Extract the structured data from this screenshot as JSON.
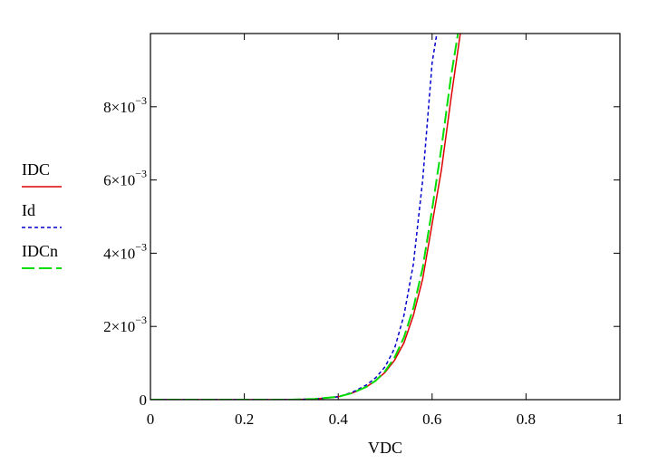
{
  "chart_data": {
    "type": "line",
    "xlabel": "VDC",
    "ylabel": "",
    "xlim": [
      0,
      1
    ],
    "ylim": [
      0,
      0.01
    ],
    "grid": false,
    "legend_position": "left",
    "x_ticks": [
      {
        "value": 0,
        "label": "0"
      },
      {
        "value": 0.2,
        "label": "0.2"
      },
      {
        "value": 0.4,
        "label": "0.4"
      },
      {
        "value": 0.6,
        "label": "0.6"
      },
      {
        "value": 0.8,
        "label": "0.8"
      },
      {
        "value": 1,
        "label": "1"
      }
    ],
    "y_ticks": [
      {
        "value": 0,
        "mantissa": "0",
        "exponent": ""
      },
      {
        "value": 0.002,
        "mantissa": "2×10",
        "exponent": "−3"
      },
      {
        "value": 0.004,
        "mantissa": "4×10",
        "exponent": "−3"
      },
      {
        "value": 0.006,
        "mantissa": "6×10",
        "exponent": "−3"
      },
      {
        "value": 0.008,
        "mantissa": "8×10",
        "exponent": "−3"
      }
    ],
    "series": [
      {
        "name": "IDC",
        "color": "#dd0000",
        "dash": "solid",
        "x": [
          0,
          0.1,
          0.2,
          0.3,
          0.35,
          0.4,
          0.43,
          0.46,
          0.48,
          0.5,
          0.52,
          0.54,
          0.56,
          0.58,
          0.6,
          0.62,
          0.64,
          0.66
        ],
        "y": [
          0,
          0,
          0,
          0,
          2e-05,
          8e-05,
          0.00018,
          0.00035,
          0.00052,
          0.00075,
          0.00108,
          0.00155,
          0.0023,
          0.0033,
          0.0048,
          0.0063,
          0.0082,
          0.01
        ]
      },
      {
        "name": "Id",
        "color": "#0000cc",
        "dash": "short-dash",
        "x": [
          0,
          0.1,
          0.2,
          0.3,
          0.35,
          0.4,
          0.43,
          0.46,
          0.48,
          0.5,
          0.52,
          0.54,
          0.56,
          0.58,
          0.6,
          0.61
        ],
        "y": [
          0,
          0,
          0,
          0,
          2e-05,
          8e-05,
          0.0002,
          0.0004,
          0.0006,
          0.0009,
          0.0014,
          0.0023,
          0.0037,
          0.006,
          0.0092,
          0.01
        ]
      },
      {
        "name": "IDCn",
        "color": "#00dd00",
        "dash": "long-dash",
        "x": [
          0,
          0.1,
          0.2,
          0.3,
          0.35,
          0.4,
          0.43,
          0.46,
          0.48,
          0.5,
          0.52,
          0.54,
          0.56,
          0.58,
          0.6,
          0.62,
          0.64,
          0.655
        ],
        "y": [
          0,
          0,
          0,
          0,
          2e-05,
          8e-05,
          0.00018,
          0.00035,
          0.00052,
          0.00078,
          0.00115,
          0.0017,
          0.0025,
          0.0036,
          0.0052,
          0.0069,
          0.0088,
          0.01
        ]
      }
    ]
  }
}
